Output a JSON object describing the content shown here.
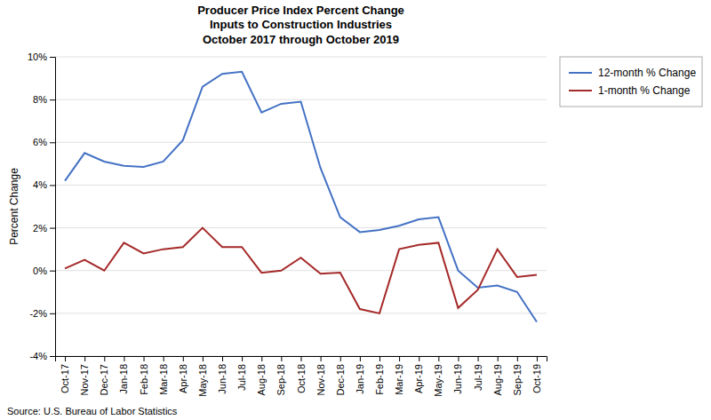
{
  "chart_data": {
    "type": "line",
    "title": "Producer Price Index Percent Change\nInputs to Construction Industries\nOctober 2017 through October 2019",
    "y_label": "Percent Change",
    "annotations": [
      "Source: U.S. Bureau of Labor Statistics"
    ],
    "categories": [
      "Oct-17",
      "Nov-17",
      "Dec-17",
      "Jan-18",
      "Feb-18",
      "Mar-18",
      "Apr-18",
      "May-18",
      "Jun-18",
      "Jul-18",
      "Aug-18",
      "Sep-18",
      "Oct-18",
      "Nov-18",
      "Dec-18",
      "Jan-19",
      "Feb-19",
      "Mar-19",
      "Apr-19",
      "May-19",
      "Jun-19",
      "Jul-19",
      "Aug-19",
      "Sep-19",
      "Oct-19"
    ],
    "series": [
      {
        "name": "12-month % Change",
        "color": "#4472C4",
        "values": [
          4.2,
          5.5,
          5.1,
          4.9,
          4.85,
          5.1,
          6.1,
          8.6,
          9.2,
          9.3,
          7.4,
          7.8,
          7.9,
          4.8,
          2.5,
          1.8,
          1.9,
          2.1,
          2.4,
          2.5,
          0.0,
          -0.8,
          -0.7,
          -1.0,
          -2.4
        ]
      },
      {
        "name": "1-month % Change",
        "color": "#A52A2A",
        "values": [
          0.1,
          0.5,
          0.0,
          1.3,
          0.8,
          1.0,
          1.1,
          2.0,
          1.1,
          1.1,
          -0.1,
          0.0,
          0.6,
          -0.15,
          -0.1,
          -1.8,
          -2.0,
          1.0,
          1.2,
          1.3,
          -1.75,
          -0.9,
          1.0,
          -0.3,
          -0.2
        ]
      }
    ],
    "ylim": [
      -4,
      10
    ],
    "yticks": [
      {
        "value": -4,
        "label": "-4%"
      },
      {
        "value": -2,
        "label": "-2%"
      },
      {
        "value": 0,
        "label": "0%"
      },
      {
        "value": 2,
        "label": "2%"
      },
      {
        "value": 4,
        "label": "4%"
      },
      {
        "value": 6,
        "label": "6%"
      },
      {
        "value": 8,
        "label": "8%"
      },
      {
        "value": 10,
        "label": "10%"
      }
    ],
    "grid": true,
    "legend": "upper right"
  }
}
